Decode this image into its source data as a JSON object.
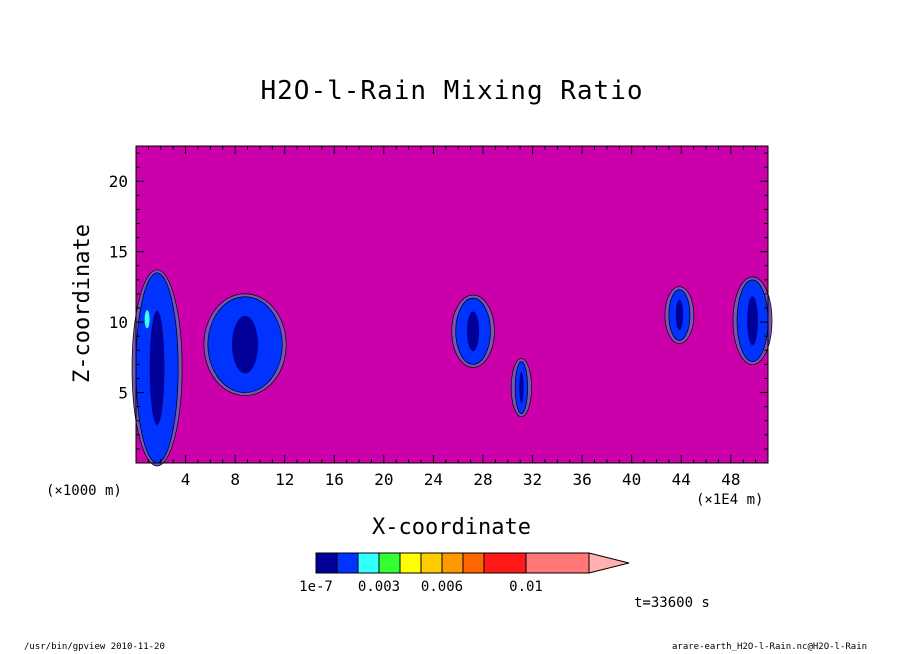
{
  "chart_data": {
    "type": "heatmap",
    "title": "H2O-l-Rain Mixing Ratio",
    "xlabel": "X-coordinate",
    "ylabel": "Z-coordinate",
    "x_unit_left": "(×1000 m)",
    "x_unit_right": "(×1E4 m)",
    "x_ticks": [
      4,
      8,
      12,
      16,
      20,
      24,
      28,
      32,
      36,
      40,
      44,
      48
    ],
    "y_ticks": [
      5,
      10,
      15,
      20
    ],
    "xlim": [
      0,
      51
    ],
    "ylim": [
      0,
      22.5
    ],
    "grid": false,
    "background_color": "#cc00aa",
    "levels": [
      {
        "color": "#000099"
      },
      {
        "color": "#0033ff"
      },
      {
        "color": "#33ffff"
      },
      {
        "color": "#33ff33"
      },
      {
        "color": "#ffff00"
      },
      {
        "color": "#ffcc00"
      },
      {
        "color": "#ff9900"
      },
      {
        "color": "#ff6600"
      },
      {
        "color": "#ff1a1a"
      },
      {
        "color": "#ff7777"
      },
      {
        "color": "#ffb0b0"
      }
    ],
    "colorbar_labels": [
      "1e-7",
      "0.003",
      "0.006",
      "0.01"
    ],
    "features": [
      {
        "x": [
          0,
          3.4
        ],
        "z": [
          0,
          13.5
        ],
        "level": 1
      },
      {
        "x": [
          5.8,
          11.8
        ],
        "z": [
          5,
          11.8
        ],
        "level": 1
      },
      {
        "x": [
          25.8,
          28.6
        ],
        "z": [
          7,
          11.7
        ],
        "level": 1
      },
      {
        "x": [
          30.6,
          31.6
        ],
        "z": [
          3.5,
          7.2
        ],
        "level": 1
      },
      {
        "x": [
          43,
          44.7
        ],
        "z": [
          8.7,
          12.3
        ],
        "level": 1
      },
      {
        "x": [
          48.5,
          51
        ],
        "z": [
          7.2,
          13
        ],
        "level": 1
      }
    ]
  },
  "annotations": {
    "timestamp": "t=33600 s",
    "footer_left": "/usr/bin/gpview  2010-11-20",
    "footer_right": "arare-earth_H2O-l-Rain.nc@H2O-l-Rain"
  }
}
